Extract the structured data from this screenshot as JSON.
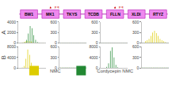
{
  "chart_data": [
    {
      "type": "gene_map",
      "categories": [
        "BW1",
        "MK1",
        "TKYS",
        "TCDB",
        "FLLN",
        "XLDI",
        "RTYZ"
      ],
      "color": "#ee88ee",
      "line_color": "#aa00aa",
      "annotations": [
        {
          "text": "p q",
          "category": 1,
          "color": "#cc0000"
        },
        {
          "text": "p q",
          "category": 4,
          "color": "#cc0000"
        }
      ]
    },
    {
      "type": "bar",
      "ylabel": "A",
      "categories": [
        null,
        null,
        null,
        null,
        null,
        null,
        null,
        null,
        null,
        null,
        null,
        null,
        null,
        null,
        null
      ],
      "ylim": [
        0,
        4000
      ],
      "yticks": [
        0,
        2000,
        4000
      ],
      "grid": false,
      "tick_labels": "y",
      "series": [
        {
          "name": "NMC",
          "color": "#ddcc00",
          "values": [
            50,
            80,
            120,
            200,
            300,
            400,
            350,
            250,
            150,
            80,
            60,
            50,
            40,
            30,
            20
          ]
        },
        {
          "name": "Cordycepin NMC",
          "color": "#228833",
          "values": [
            20,
            30,
            80,
            150,
            600,
            1800,
            3200,
            2800,
            1500,
            600,
            200,
            80,
            40,
            20,
            10
          ]
        },
        {
          "color": "#2255aa",
          "values": [
            10,
            10,
            10,
            10,
            10,
            10,
            10,
            10,
            10,
            10,
            10,
            10,
            10,
            10,
            10
          ]
        }
      ]
    },
    {
      "type": "bar",
      "categories": [
        null,
        null,
        null,
        null,
        null,
        null,
        null,
        null,
        null,
        null,
        null,
        null,
        null,
        null,
        null
      ],
      "ylim": [
        0,
        600
      ],
      "yticks": [
        0,
        300,
        600
      ],
      "grid": false,
      "tick_labels": "y",
      "series": [
        {
          "name": "NMC",
          "color": "#ddcc00",
          "values": [
            10,
            10,
            10,
            10,
            10,
            10,
            10,
            10,
            10,
            10,
            10,
            10,
            10,
            10,
            10
          ]
        },
        {
          "name": "Cordycepin NMC",
          "color": "#228833",
          "values": [
            10,
            10,
            10,
            10,
            10,
            10,
            10,
            10,
            10,
            10,
            10,
            10,
            10,
            10,
            10
          ]
        },
        {
          "color": "#2255aa",
          "values": [
            10,
            10,
            10,
            10,
            10,
            10,
            10,
            10,
            10,
            10,
            10,
            10,
            10,
            10,
            10
          ]
        }
      ]
    },
    {
      "type": "bar",
      "categories": [
        null,
        null,
        null,
        null,
        null,
        null,
        null,
        null,
        null,
        null,
        null,
        null,
        null,
        null,
        null
      ],
      "ylim": [
        0,
        600
      ],
      "yticks": [
        0,
        300,
        600
      ],
      "grid": false,
      "tick_labels": "y",
      "series": [
        {
          "name": "NMC",
          "color": "#ddcc00",
          "values": [
            10,
            10,
            10,
            10,
            10,
            10,
            10,
            10,
            10,
            10,
            10,
            10,
            10,
            10,
            10
          ]
        },
        {
          "name": "Cordycepin NMC",
          "color": "#228833",
          "values": [
            10,
            10,
            10,
            10,
            10,
            10,
            10,
            10,
            10,
            10,
            10,
            10,
            10,
            10,
            10
          ]
        },
        {
          "color": "#2255aa",
          "values": [
            10,
            10,
            10,
            10,
            10,
            10,
            10,
            10,
            10,
            10,
            10,
            10,
            10,
            10,
            10
          ]
        }
      ]
    },
    {
      "type": "bar",
      "categories": [
        null,
        null,
        null,
        null,
        null,
        null,
        null,
        null,
        null,
        null,
        null,
        null,
        null,
        null,
        null
      ],
      "ylim": [
        0,
        600
      ],
      "yticks": [
        0,
        300,
        600
      ],
      "grid": false,
      "tick_labels": "y",
      "series": [
        {
          "name": "NMC",
          "color": "#ddcc00",
          "values": [
            10,
            10,
            50,
            80,
            120,
            200,
            300,
            350,
            280,
            200,
            120,
            80,
            50,
            30,
            10
          ]
        },
        {
          "name": "Cordycepin NMC",
          "color": "#228833",
          "values": [
            10,
            10,
            10,
            10,
            10,
            10,
            10,
            10,
            10,
            10,
            10,
            10,
            10,
            10,
            10
          ]
        },
        {
          "color": "#2255aa",
          "values": [
            10,
            10,
            10,
            10,
            10,
            10,
            10,
            10,
            10,
            10,
            10,
            10,
            10,
            10,
            10
          ]
        }
      ]
    },
    {
      "type": "bar",
      "ylabel": "B",
      "categories": [
        null,
        null,
        null,
        null,
        null,
        null,
        null,
        null,
        null,
        null,
        null,
        null,
        null,
        null,
        null
      ],
      "ylim": [
        0,
        8000
      ],
      "yticks": [
        0,
        4000,
        8000
      ],
      "grid": false,
      "tick_labels": "y",
      "series": [
        {
          "name": "NMC",
          "color": "#ddcc00",
          "values": [
            20,
            50,
            200,
            800,
            3500,
            7000,
            5000,
            2000,
            600,
            200,
            80,
            30,
            15,
            10,
            5
          ]
        },
        {
          "name": "Cordycepin NMC",
          "color": "#228833",
          "values": [
            10,
            10,
            10,
            10,
            10,
            10,
            10,
            10,
            10,
            10,
            10,
            10,
            10,
            10,
            10
          ]
        },
        {
          "color": "#2255aa",
          "values": [
            10,
            10,
            10,
            10,
            10,
            10,
            10,
            10,
            10,
            10,
            10,
            10,
            10,
            10,
            10
          ]
        }
      ]
    },
    {
      "type": "bar",
      "categories": [
        null,
        null,
        null,
        null,
        null,
        null,
        null,
        null,
        null,
        null,
        null,
        null,
        null,
        null,
        null
      ],
      "ylim": [
        0,
        600
      ],
      "yticks": [
        0,
        300,
        600
      ],
      "grid": false,
      "tick_labels": "y",
      "series": [
        {
          "name": "NMC",
          "color": "#ddcc00",
          "values": [
            10,
            10,
            10,
            10,
            10,
            10,
            10,
            10,
            10,
            10,
            10,
            10,
            10,
            10,
            10
          ]
        },
        {
          "name": "Cordycepin NMC",
          "color": "#228833",
          "values": [
            10,
            10,
            10,
            10,
            10,
            10,
            10,
            10,
            10,
            10,
            10,
            10,
            10,
            10,
            10
          ]
        },
        {
          "color": "#2255aa",
          "values": [
            10,
            10,
            10,
            10,
            10,
            10,
            10,
            10,
            10,
            10,
            10,
            10,
            10,
            10,
            10
          ]
        }
      ]
    },
    {
      "type": "bar",
      "categories": [
        null,
        null,
        null,
        null,
        null,
        null,
        null,
        null,
        null,
        null,
        null,
        null,
        null,
        null,
        null
      ],
      "ylim": [
        0,
        8000
      ],
      "yticks": [
        0,
        4000,
        8000
      ],
      "grid": false,
      "tick_labels": "y",
      "series": [
        {
          "name": "NMC",
          "color": "#ddcc00",
          "values": [
            10,
            10,
            10,
            10,
            10,
            10,
            10,
            10,
            10,
            10,
            10,
            10,
            10,
            10,
            10
          ]
        },
        {
          "name": "Cordycepin NMC",
          "color": "#228833",
          "values": [
            10,
            20,
            80,
            400,
            1800,
            6500,
            7800,
            4000,
            1200,
            300,
            80,
            30,
            15,
            10,
            5
          ]
        },
        {
          "color": "#2255aa",
          "values": [
            10,
            10,
            10,
            10,
            10,
            10,
            10,
            10,
            10,
            10,
            10,
            10,
            10,
            10,
            10
          ]
        }
      ]
    },
    {
      "type": "bar",
      "categories": [
        null,
        null,
        null,
        null,
        null,
        null,
        null,
        null,
        null,
        null,
        null,
        null,
        null,
        null,
        null
      ],
      "ylim": [
        0,
        600
      ],
      "yticks": [
        0,
        300,
        600
      ],
      "grid": false,
      "tick_labels": "y",
      "series": [
        {
          "name": "NMC",
          "color": "#ddcc00",
          "values": [
            10,
            10,
            10,
            10,
            10,
            10,
            10,
            10,
            10,
            10,
            10,
            10,
            10,
            10,
            10
          ]
        },
        {
          "name": "Cordycepin NMC",
          "color": "#228833",
          "values": [
            10,
            10,
            10,
            10,
            10,
            10,
            10,
            10,
            10,
            10,
            10,
            10,
            10,
            10,
            10
          ]
        },
        {
          "color": "#2255aa",
          "values": [
            10,
            10,
            10,
            10,
            10,
            10,
            10,
            10,
            10,
            10,
            10,
            10,
            10,
            10,
            10
          ]
        }
      ]
    }
  ]
}
